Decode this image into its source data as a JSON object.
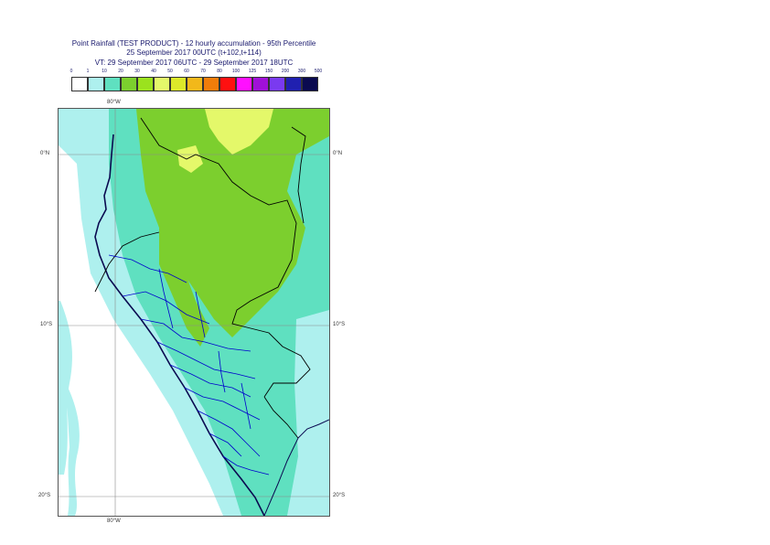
{
  "title": {
    "line1": "Point Rainfall (TEST PRODUCT) - 12 hourly accumulation - 95th Percentile",
    "line2": "25 September 2017 00UTC (t+102,t+114)",
    "line3": "VT: 29 September 2017 06UTC - 29 September 2017 18UTC"
  },
  "legend": {
    "labels": [
      "0",
      "1",
      "10",
      "20",
      "30",
      "40",
      "50",
      "60",
      "70",
      "80",
      "100",
      "125",
      "150",
      "200",
      "300",
      "500"
    ],
    "colors": [
      "#ffffff",
      "#aef0ee",
      "#5fe0c0",
      "#7ccf2e",
      "#9be21e",
      "#e4f86a",
      "#dce82a",
      "#f2b81a",
      "#f07d0a",
      "#ff1010",
      "#ff10ff",
      "#a010d8",
      "#7a3af0",
      "#2020b0",
      "#0a0a50"
    ]
  },
  "axes": {
    "lon_top": "80°W",
    "lon_bottom": "80°W",
    "lat_0": "0°N",
    "lat_10": "10°S",
    "lat_20": "20°S"
  },
  "colors": {
    "sea": "#aef0ee",
    "light": "#5fe0c0",
    "moderate": "#7ccf2e",
    "heavy": "#e4f86a",
    "coast": "#0a0a50",
    "border": "#000000",
    "regions": "#0000cc"
  }
}
